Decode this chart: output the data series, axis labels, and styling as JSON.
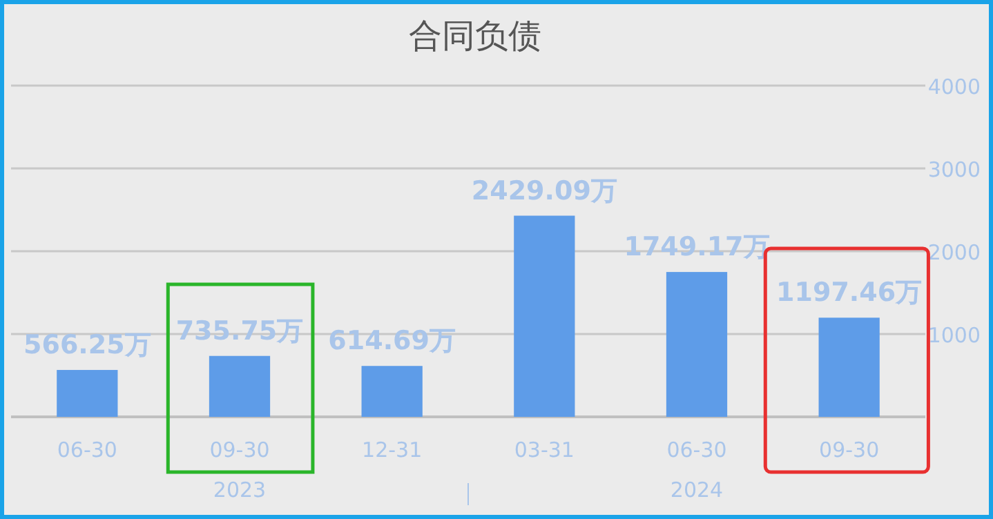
{
  "chart_data": {
    "type": "bar",
    "title": "合同负债",
    "categories": [
      "06-30",
      "09-30",
      "12-31",
      "03-31",
      "06-30",
      "09-30"
    ],
    "values": [
      566.25,
      735.75,
      614.69,
      2429.09,
      1749.17,
      1197.46
    ],
    "value_labels": [
      "566.25万",
      "735.75万",
      "614.69万",
      "2429.09万",
      "1749.17万",
      "1197.46万"
    ],
    "color": "#5e9ce8",
    "ylim": [
      0,
      4000
    ],
    "yticks": [
      1000,
      2000,
      3000,
      4000
    ],
    "grid": "y",
    "annotations": [
      "2023",
      "2024"
    ]
  }
}
